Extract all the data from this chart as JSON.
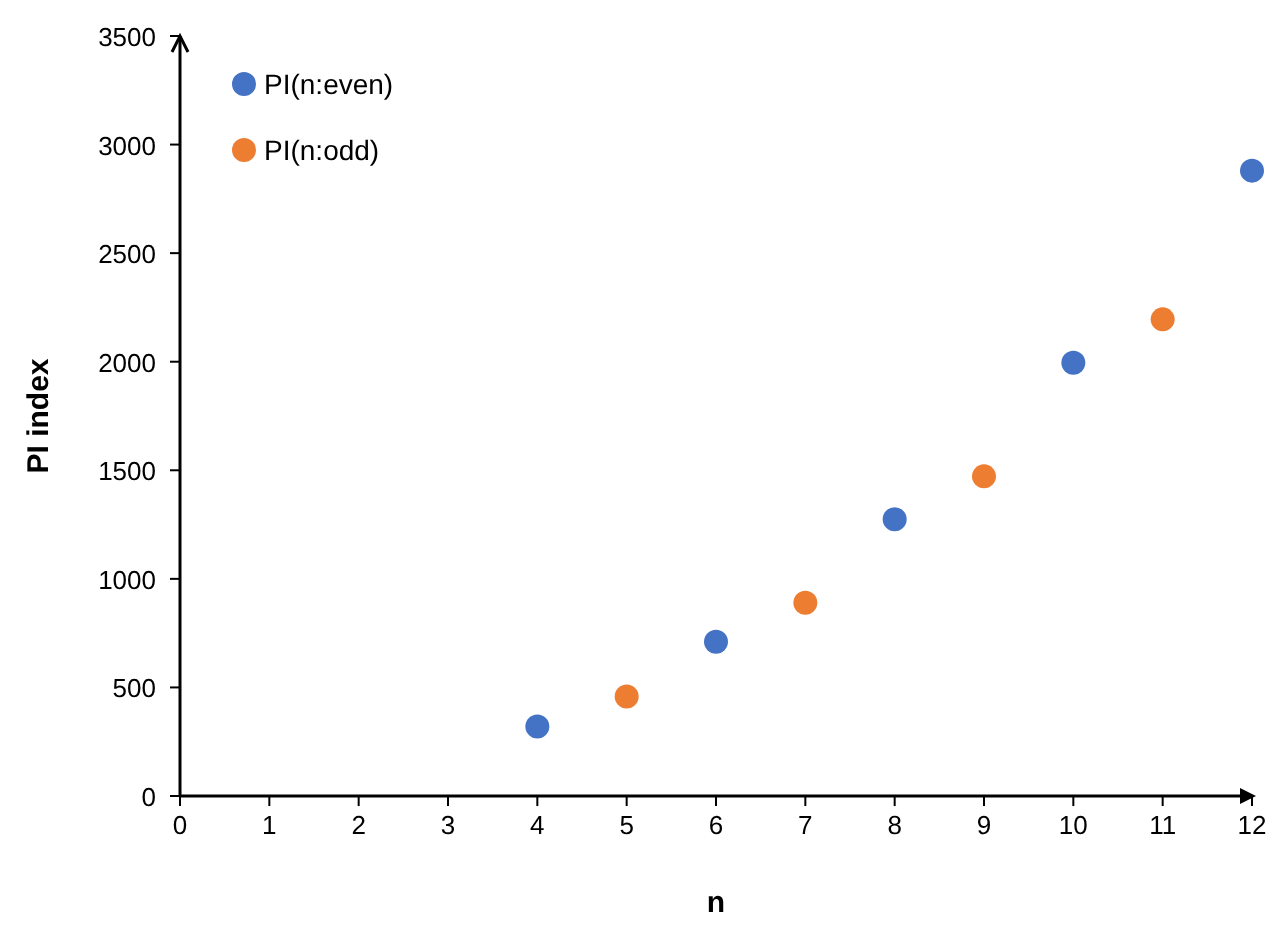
{
  "chart_data": {
    "type": "scatter",
    "xlabel": "n",
    "ylabel": "PI index",
    "xlim": [
      0,
      12
    ],
    "xticks": [
      0,
      1,
      2,
      3,
      4,
      5,
      6,
      7,
      8,
      9,
      10,
      11,
      12
    ],
    "ylim": [
      0,
      3500
    ],
    "yticks": [
      0,
      500,
      1000,
      1500,
      2000,
      2500,
      3000,
      3500
    ],
    "grid": false,
    "legend": "top left",
    "marker": "circle",
    "series": [
      {
        "name": "PI(n:even)",
        "color": "#4472c4",
        "x": [
          4,
          6,
          8,
          10,
          12
        ],
        "values": [
          320,
          710,
          1275,
          1995,
          2880
        ]
      },
      {
        "name": "PI(n:odd)",
        "color": "#ed7d31",
        "x": [
          5,
          7,
          9,
          11
        ],
        "values": [
          458,
          890,
          1472,
          2195
        ]
      }
    ]
  }
}
